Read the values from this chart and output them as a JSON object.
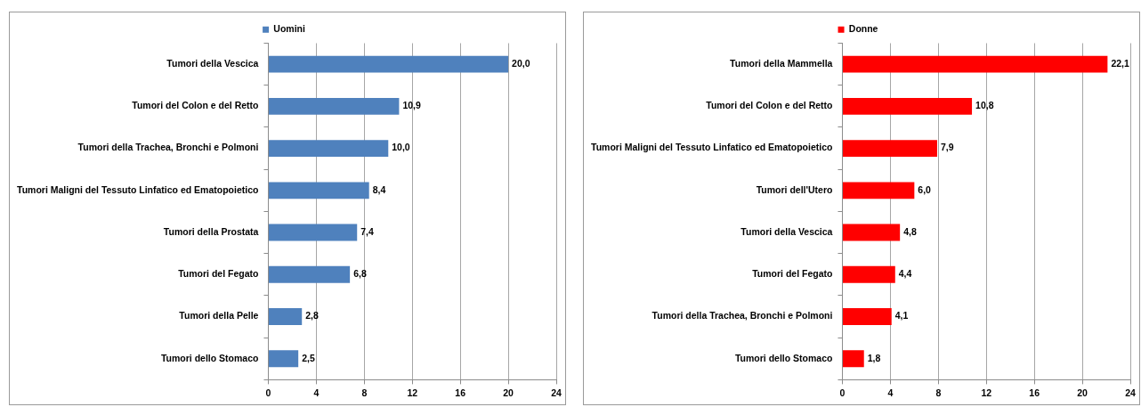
{
  "chart_data": [
    {
      "type": "bar",
      "orientation": "horizontal",
      "categories": [
        "Tumori della Vescica",
        "Tumori del Colon e del Retto",
        "Tumori della Trachea, Bronchi e Polmoni",
        "Tumori Maligni del Tessuto Linfatico ed Ematopoietico",
        "Tumori della Prostata",
        "Tumori del Fegato",
        "Tumori della Pelle",
        "Tumori dello Stomaco"
      ],
      "series": [
        {
          "name": "Uomini",
          "color": "#4f81bd",
          "values": [
            20.0,
            10.9,
            10.0,
            8.4,
            7.4,
            6.8,
            2.8,
            2.5
          ],
          "value_labels": [
            "20,0",
            "10,9",
            "10,0",
            "8,4",
            "7,4",
            "6,8",
            "2,8",
            "2,5"
          ]
        }
      ],
      "xlim": [
        0,
        24
      ],
      "xticks": [
        0,
        4,
        8,
        12,
        16,
        20,
        24
      ],
      "grid": "x",
      "legend": "top"
    },
    {
      "type": "bar",
      "orientation": "horizontal",
      "categories": [
        "Tumori della Mammella",
        "Tumori del Colon e del Retto",
        "Tumori Maligni del Tessuto Linfatico ed Ematopoietico",
        "Tumori dell'Utero",
        "Tumori della Vescica",
        "Tumori del Fegato",
        "Tumori della Trachea, Bronchi e Polmoni",
        "Tumori dello Stomaco"
      ],
      "series": [
        {
          "name": "Donne",
          "color": "#ff0000",
          "values": [
            22.1,
            10.8,
            7.9,
            6.0,
            4.8,
            4.4,
            4.1,
            1.8
          ],
          "value_labels": [
            "22,1",
            "10,8",
            "7,9",
            "6,0",
            "4,8",
            "4,4",
            "4,1",
            "1,8"
          ]
        }
      ],
      "xlim": [
        0,
        24
      ],
      "xticks": [
        0,
        4,
        8,
        12,
        16,
        20,
        24
      ],
      "grid": "x",
      "legend": "top"
    }
  ]
}
